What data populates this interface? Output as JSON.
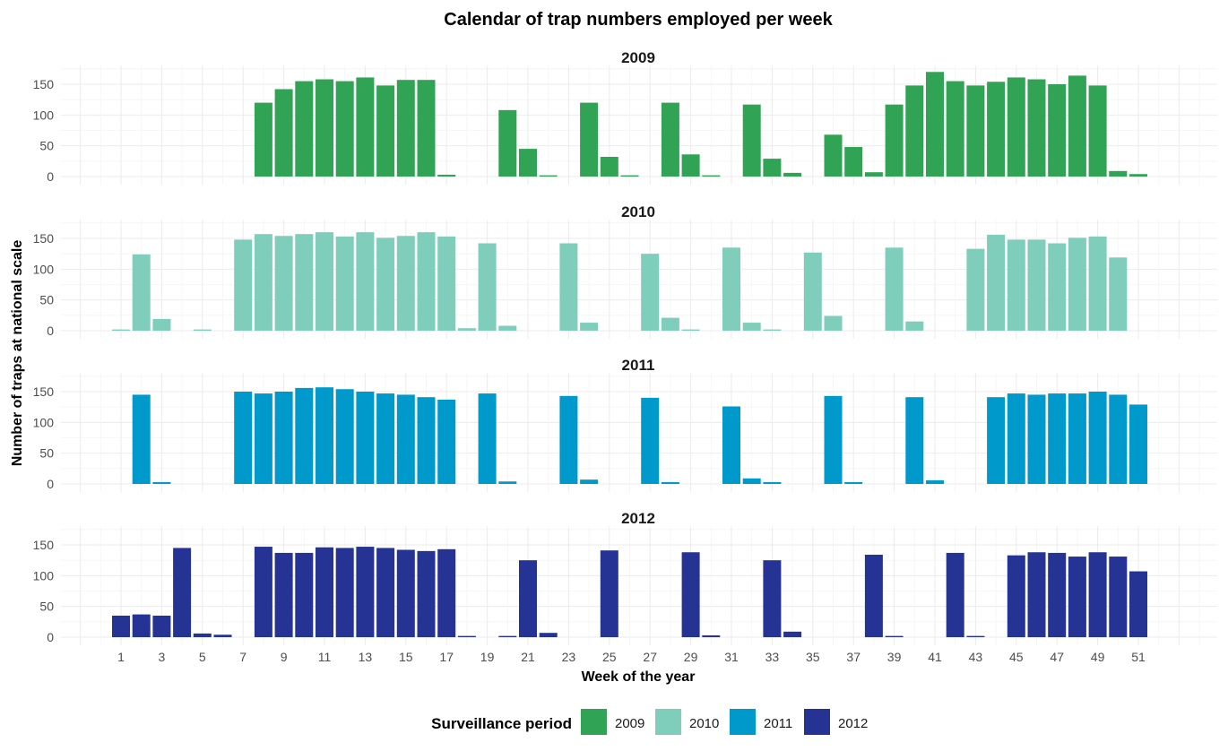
{
  "chart_data": {
    "type": "bar",
    "title": "Calendar of trap numbers employed per week",
    "xlabel": "Week of the year",
    "ylabel": "Number of traps at national scale",
    "x": [
      1,
      2,
      3,
      4,
      5,
      6,
      7,
      8,
      9,
      10,
      11,
      12,
      13,
      14,
      15,
      16,
      17,
      18,
      19,
      20,
      21,
      22,
      23,
      24,
      25,
      26,
      27,
      28,
      29,
      30,
      31,
      32,
      33,
      34,
      35,
      36,
      37,
      38,
      39,
      40,
      41,
      42,
      43,
      44,
      45,
      46,
      47,
      48,
      49,
      50,
      51,
      52
    ],
    "x_tick_labels": [
      "1",
      "3",
      "5",
      "7",
      "9",
      "11",
      "13",
      "15",
      "17",
      "19",
      "21",
      "23",
      "25",
      "27",
      "29",
      "31",
      "33",
      "35",
      "37",
      "39",
      "41",
      "43",
      "45",
      "47",
      "49",
      "51"
    ],
    "ylim": [
      0,
      180
    ],
    "y_ticks": [
      "0",
      "50",
      "100",
      "150"
    ],
    "grid": true,
    "legend": {
      "title": "Surveillance period",
      "position": "bottom"
    },
    "series": [
      {
        "name": "2009",
        "color": "#31a354",
        "values": [
          0,
          0,
          0,
          0,
          0,
          0,
          0,
          120,
          142,
          155,
          158,
          155,
          161,
          148,
          157,
          157,
          3,
          0,
          0,
          108,
          45,
          2,
          0,
          120,
          32,
          2,
          0,
          120,
          36,
          2,
          0,
          117,
          29,
          6,
          0,
          68,
          48,
          7,
          117,
          148,
          170,
          155,
          148,
          154,
          161,
          158,
          150,
          164,
          148,
          9,
          4,
          0
        ]
      },
      {
        "name": "2010",
        "color": "#7fcdbb",
        "values": [
          2,
          124,
          19,
          0,
          2,
          0,
          148,
          157,
          154,
          157,
          160,
          153,
          160,
          151,
          154,
          160,
          153,
          4,
          142,
          8,
          0,
          0,
          142,
          13,
          0,
          0,
          125,
          21,
          2,
          0,
          135,
          13,
          2,
          0,
          127,
          24,
          0,
          0,
          135,
          15,
          0,
          0,
          133,
          156,
          148,
          148,
          142,
          151,
          153,
          119,
          0,
          0
        ]
      },
      {
        "name": "2011",
        "color": "#0099cc",
        "values": [
          0,
          145,
          3,
          0,
          0,
          0,
          150,
          147,
          150,
          156,
          157,
          154,
          150,
          147,
          145,
          141,
          137,
          0,
          147,
          4,
          0,
          0,
          143,
          7,
          0,
          0,
          140,
          3,
          0,
          0,
          126,
          9,
          3,
          0,
          0,
          143,
          3,
          0,
          0,
          141,
          6,
          0,
          0,
          141,
          147,
          145,
          147,
          147,
          150,
          145,
          129,
          0
        ]
      },
      {
        "name": "2012",
        "color": "#253494",
        "values": [
          35,
          37,
          35,
          145,
          6,
          4,
          0,
          147,
          137,
          137,
          146,
          145,
          147,
          145,
          142,
          140,
          143,
          2,
          0,
          2,
          125,
          7,
          0,
          0,
          141,
          0,
          0,
          0,
          138,
          3,
          0,
          0,
          125,
          9,
          0,
          0,
          0,
          134,
          2,
          0,
          0,
          137,
          2,
          0,
          133,
          138,
          137,
          131,
          138,
          131,
          107,
          0
        ]
      }
    ]
  }
}
